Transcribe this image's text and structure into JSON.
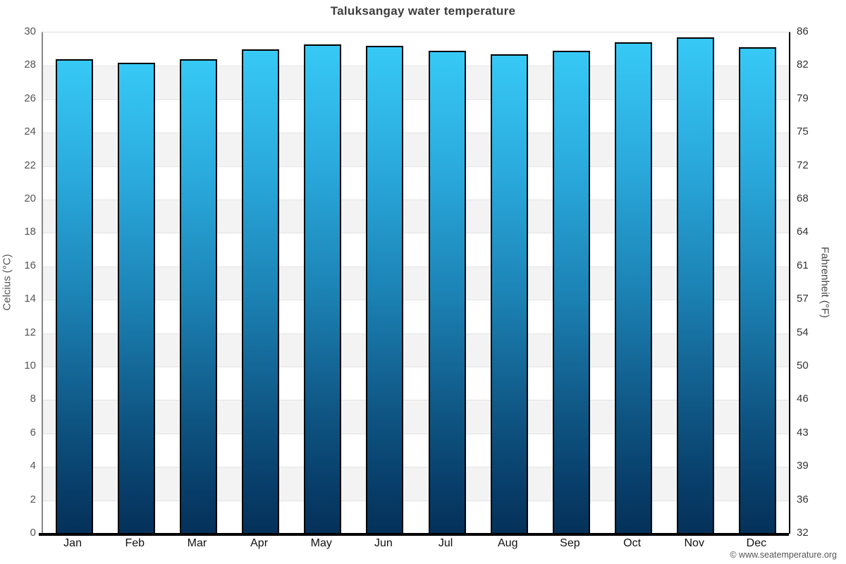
{
  "title": "Taluksangay water temperature",
  "watermark": "© www.seatemperature.org",
  "chart_data": {
    "type": "bar",
    "title": "Taluksangay water temperature",
    "categories": [
      "Jan",
      "Feb",
      "Mar",
      "Apr",
      "May",
      "Jun",
      "Jul",
      "Aug",
      "Sep",
      "Oct",
      "Nov",
      "Dec"
    ],
    "values": [
      28.4,
      28.2,
      28.4,
      29.0,
      29.3,
      29.2,
      28.9,
      28.7,
      28.9,
      29.4,
      29.7,
      29.1
    ],
    "unit": "°C",
    "ylabel_left": "Celcius (°C)",
    "ylabel_right": "Fahrenheit (°F)",
    "ylim": [
      0,
      30
    ],
    "yticks_celsius": [
      30,
      28,
      26,
      24,
      22,
      20,
      18,
      16,
      14,
      12,
      10,
      8,
      6,
      4,
      2,
      0
    ],
    "yticks_fahrenheit": [
      86,
      82,
      79,
      75,
      72,
      68,
      64,
      61,
      57,
      54,
      50,
      46,
      43,
      39,
      36,
      32
    ],
    "grid": "horizontal-bands-alternating",
    "legend": "none",
    "colors": {
      "bar_gradient_top": "#37c9f6",
      "bar_gradient_mid": "#1c83b5",
      "bar_gradient_bottom": "#043159",
      "bar_border": "#000000",
      "band_gray": "#f3f3f3",
      "band_white": "#ffffff",
      "gridline": "#e4e4e4",
      "title_color": "#3d3d3d",
      "tick_label_color": "#555555"
    }
  }
}
